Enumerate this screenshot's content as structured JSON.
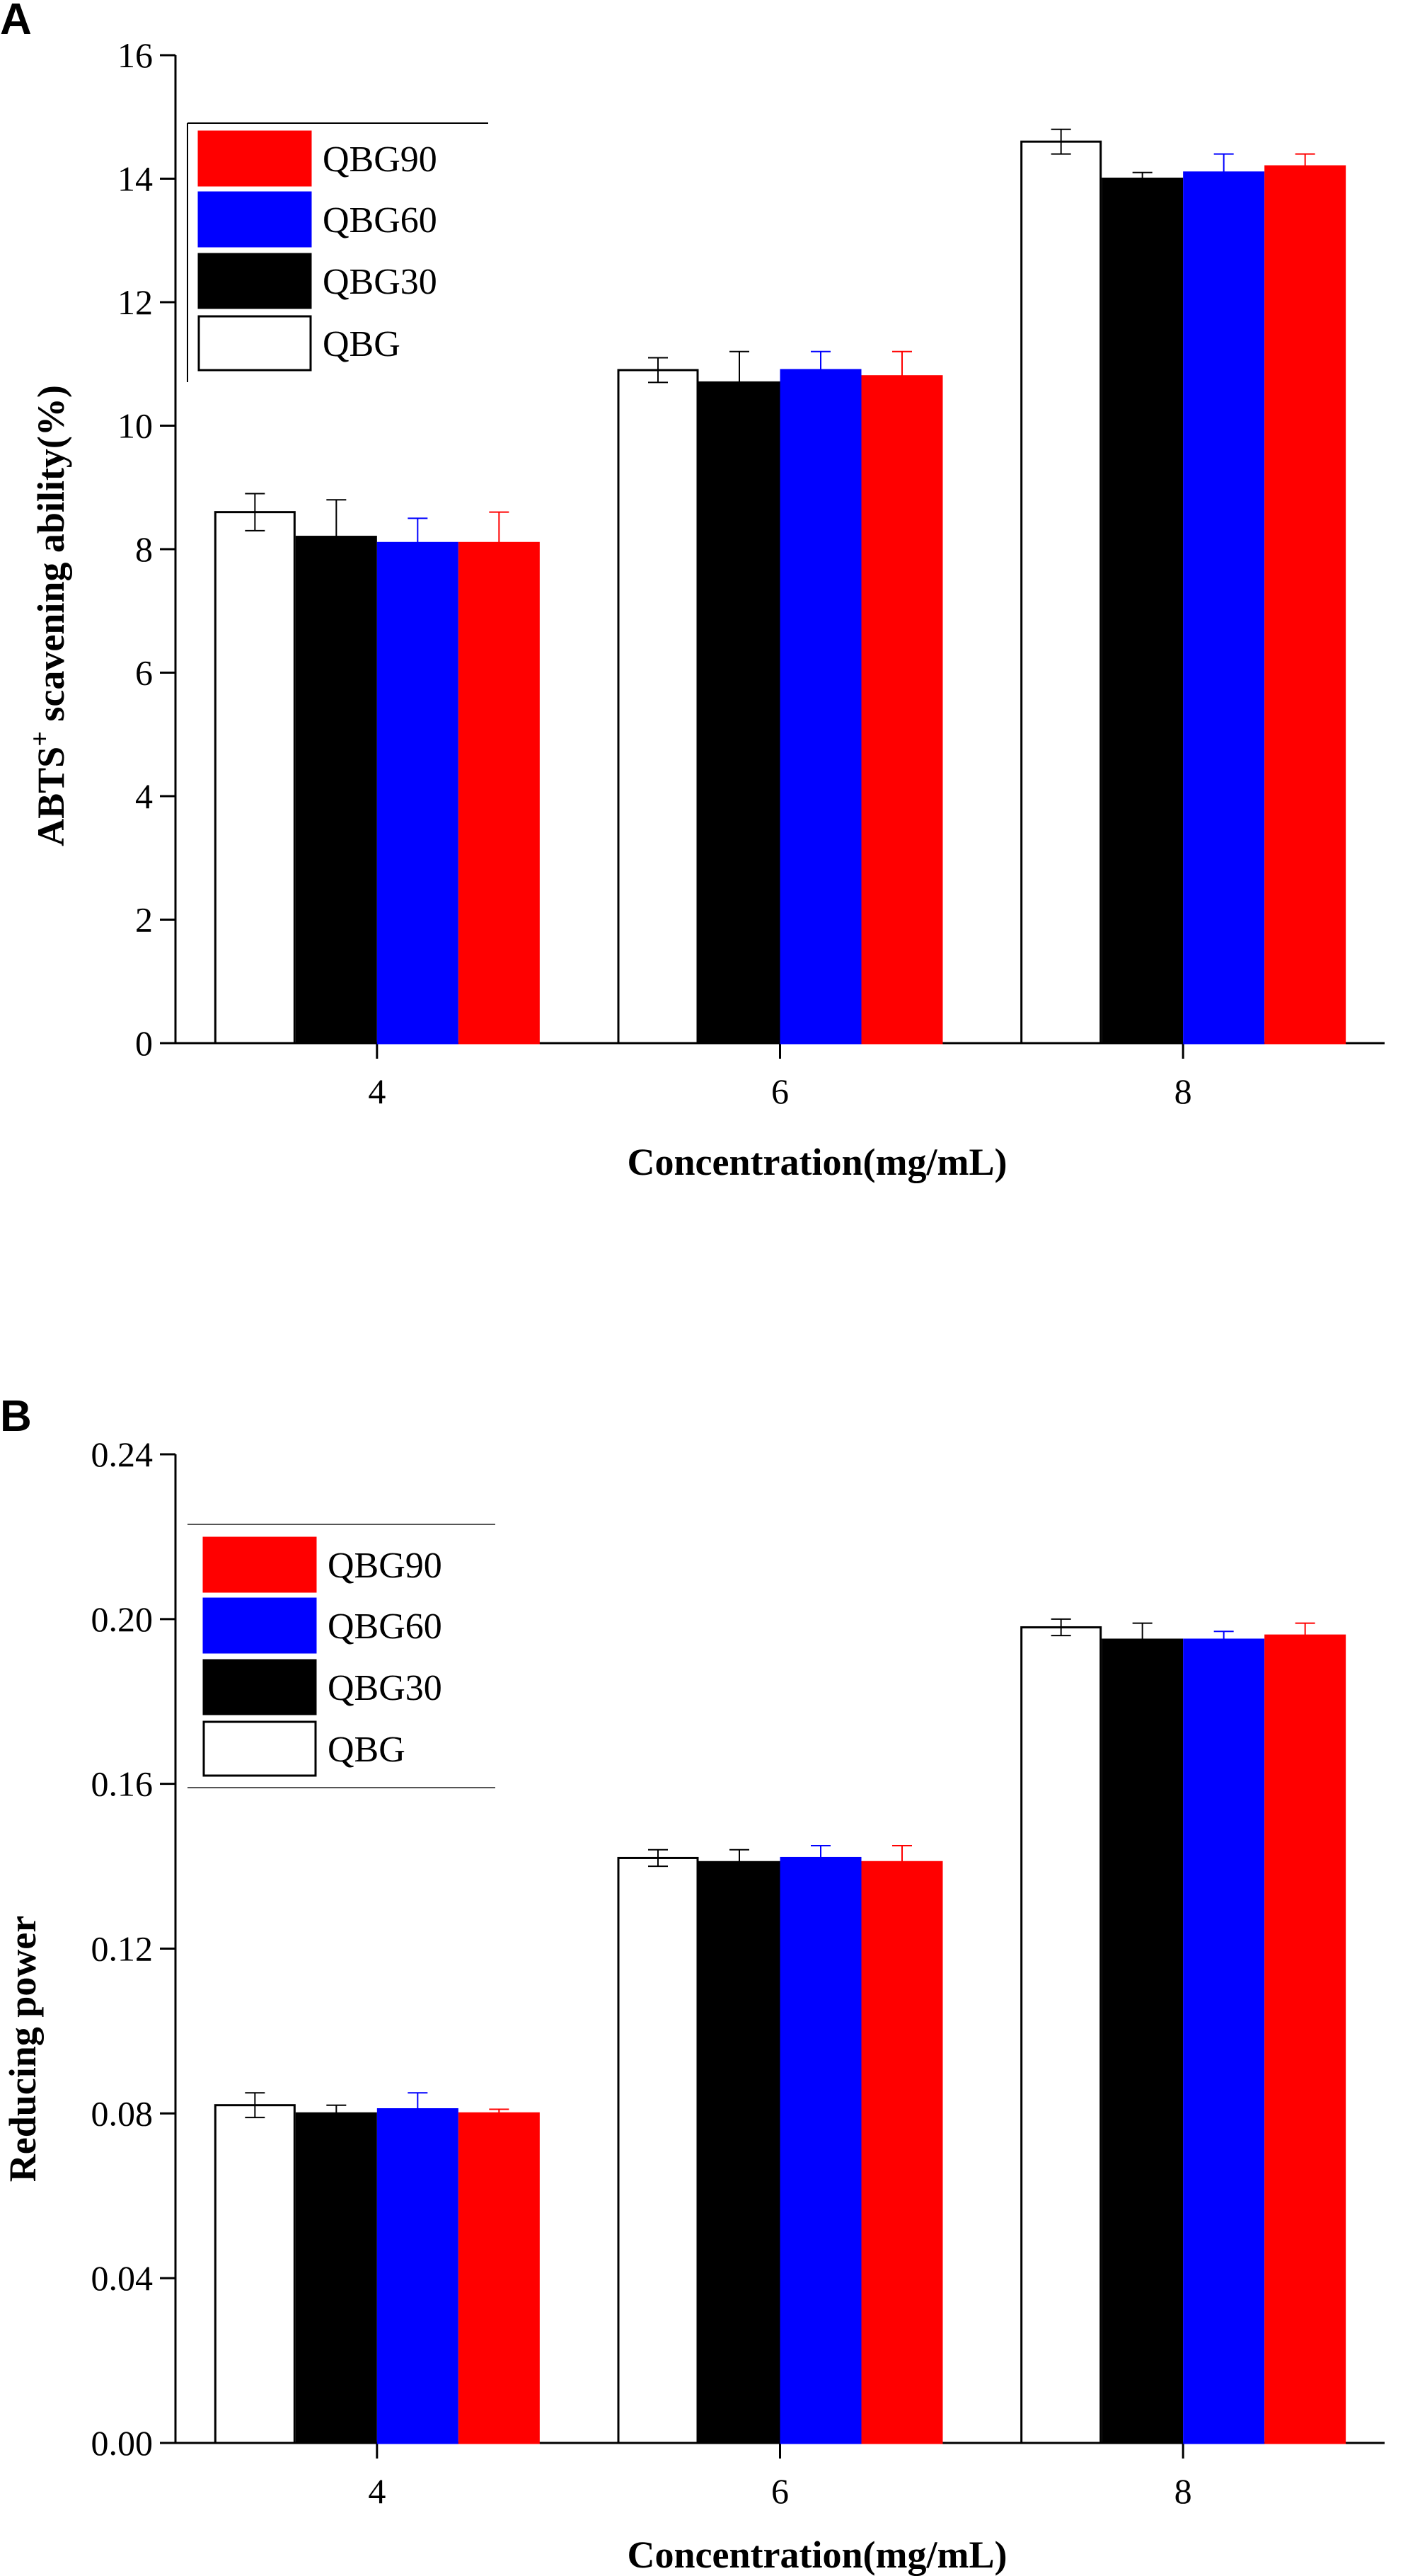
{
  "panels": [
    {
      "letter": "A"
    },
    {
      "letter": "B"
    }
  ],
  "chart_data": [
    {
      "type": "bar",
      "title": "",
      "panel": "A",
      "xlabel": "Concentration(mg/mL)",
      "ylabel": "ABTS⁺ scavening ability(%)",
      "ylabel_parts": {
        "main": "ABTS",
        "sup": "+",
        "rest": " scavening ability(%)"
      },
      "categories": [
        "4",
        "6",
        "8"
      ],
      "ylim": [
        0,
        16
      ],
      "yticks": [
        0,
        2,
        4,
        6,
        8,
        10,
        12,
        14,
        16
      ],
      "ytick_labels": [
        "0",
        "2",
        "4",
        "6",
        "8",
        "10",
        "12",
        "14",
        "16"
      ],
      "series": [
        {
          "name": "QBG",
          "fill": "#ffffff",
          "stroke": "#000000",
          "errcolor": "#000000",
          "values": [
            8.6,
            10.9,
            14.6
          ],
          "errors": [
            0.3,
            0.2,
            0.2
          ]
        },
        {
          "name": "QBG30",
          "fill": "#000000",
          "stroke": "#000000",
          "errcolor": "#000000",
          "values": [
            8.2,
            10.7,
            14.0
          ],
          "errors": [
            0.6,
            0.5,
            0.1
          ]
        },
        {
          "name": "QBG60",
          "fill": "#0000ff",
          "stroke": "#0000ff",
          "errcolor": "#0000ff",
          "values": [
            8.1,
            10.9,
            14.1
          ],
          "errors": [
            0.4,
            0.3,
            0.3
          ]
        },
        {
          "name": "QBG90",
          "fill": "#ff0000",
          "stroke": "#ff0000",
          "errcolor": "#ff0000",
          "values": [
            8.1,
            10.8,
            14.2
          ],
          "errors": [
            0.5,
            0.4,
            0.2
          ]
        }
      ],
      "legend": {
        "placement": "top-left",
        "order": [
          "QBG90",
          "QBG60",
          "QBG30",
          "QBG"
        ]
      }
    },
    {
      "type": "bar",
      "title": "",
      "panel": "B",
      "xlabel": "Concentration(mg/mL)",
      "ylabel": "Reducing power",
      "categories": [
        "4",
        "6",
        "8"
      ],
      "ylim": [
        0,
        0.24
      ],
      "yticks": [
        0,
        0.04,
        0.08,
        0.12,
        0.16,
        0.2,
        0.24
      ],
      "ytick_labels": [
        "0.00",
        "0.04",
        "0.08",
        "0.12",
        "0.16",
        "0.20",
        "0.24"
      ],
      "series": [
        {
          "name": "QBG",
          "fill": "#ffffff",
          "stroke": "#000000",
          "errcolor": "#000000",
          "values": [
            0.082,
            0.142,
            0.198
          ],
          "errors": [
            0.003,
            0.002,
            0.002
          ]
        },
        {
          "name": "QBG30",
          "fill": "#000000",
          "stroke": "#000000",
          "errcolor": "#000000",
          "values": [
            0.08,
            0.141,
            0.195
          ],
          "errors": [
            0.002,
            0.003,
            0.004
          ]
        },
        {
          "name": "QBG60",
          "fill": "#0000ff",
          "stroke": "#0000ff",
          "errcolor": "#0000ff",
          "values": [
            0.081,
            0.142,
            0.195
          ],
          "errors": [
            0.004,
            0.003,
            0.002
          ]
        },
        {
          "name": "QBG90",
          "fill": "#ff0000",
          "stroke": "#ff0000",
          "errcolor": "#ff0000",
          "values": [
            0.08,
            0.141,
            0.196
          ],
          "errors": [
            0.001,
            0.004,
            0.003
          ]
        }
      ],
      "legend": {
        "placement": "top-left",
        "order": [
          "QBG90",
          "QBG60",
          "QBG30",
          "QBG"
        ]
      }
    }
  ]
}
